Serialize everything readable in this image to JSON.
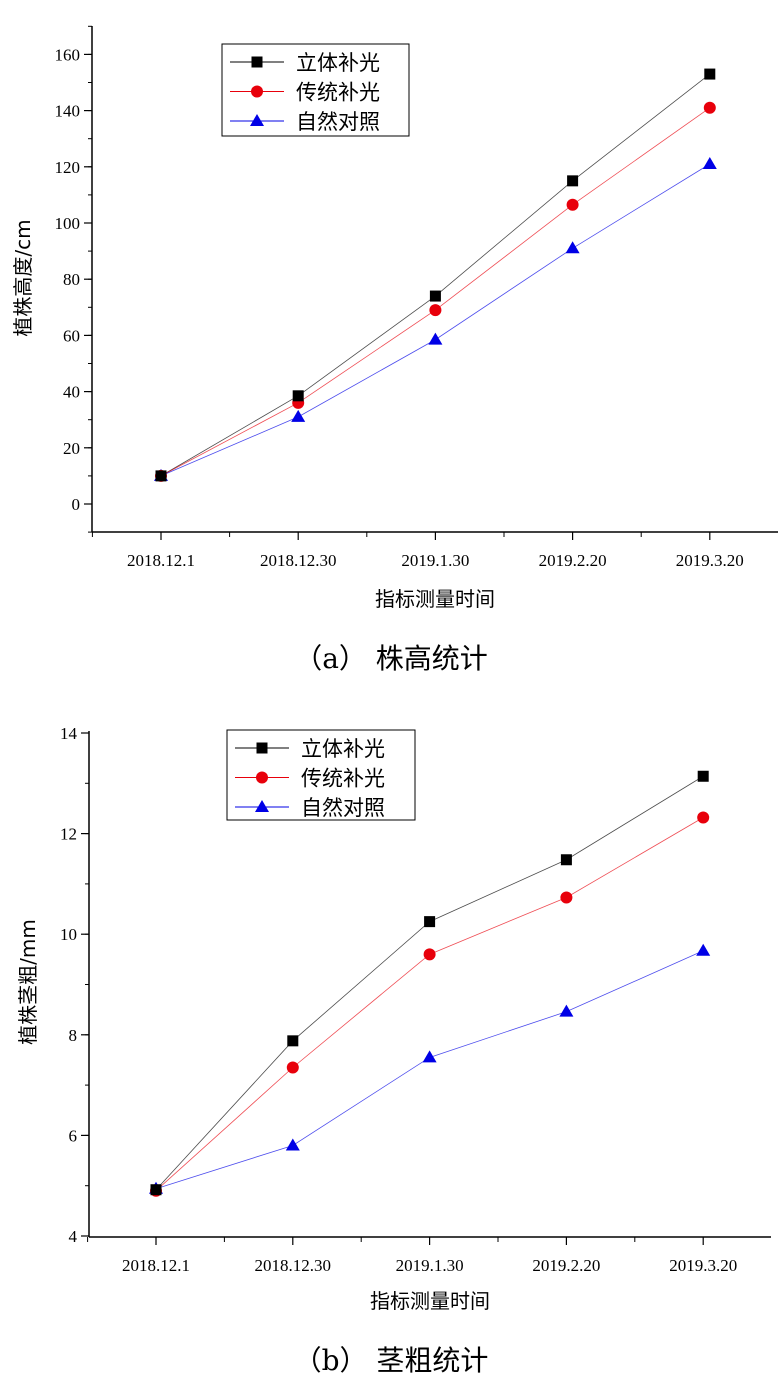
{
  "chart_data": [
    {
      "type": "line",
      "title": "",
      "caption": "（a） 株高统计",
      "xlabel": "指标测量时间",
      "ylabel": "植株高度/cm",
      "categories": [
        "2018.12.1",
        "2018.12.30",
        "2019.1.30",
        "2019.2.20",
        "2019.3.20"
      ],
      "ylim": [
        -10,
        170
      ],
      "yticks": [
        "0",
        "20",
        "40",
        "60",
        "80",
        "100",
        "120",
        "140",
        "160"
      ],
      "legend_position": "top-left",
      "series": [
        {
          "name": "立体补光",
          "marker": "square",
          "color": "#000000",
          "values": [
            10,
            38.5,
            74,
            115,
            153
          ]
        },
        {
          "name": "传统补光",
          "marker": "circle",
          "color": "#e8000b",
          "values": [
            10,
            36,
            69,
            106.5,
            141
          ]
        },
        {
          "name": "自然对照",
          "marker": "triangle",
          "color": "#0000e6",
          "values": [
            10,
            31,
            58.5,
            91,
            121
          ]
        }
      ]
    },
    {
      "type": "line",
      "title": "",
      "caption": "（b） 茎粗统计",
      "xlabel": "指标测量时间",
      "ylabel": "植株茎粗/mm",
      "categories": [
        "2018.12.1",
        "2018.12.30",
        "2019.1.30",
        "2019.2.20",
        "2019.3.20"
      ],
      "ylim": [
        4,
        14
      ],
      "yticks": [
        "4",
        "6",
        "8",
        "10",
        "12",
        "14"
      ],
      "legend_position": "top-left",
      "series": [
        {
          "name": "立体补光",
          "marker": "square",
          "color": "#000000",
          "values": [
            4.92,
            7.88,
            10.25,
            11.48,
            13.14
          ]
        },
        {
          "name": "传统补光",
          "marker": "circle",
          "color": "#e8000b",
          "values": [
            4.9,
            7.35,
            9.6,
            10.73,
            12.32
          ]
        },
        {
          "name": "自然对照",
          "marker": "triangle",
          "color": "#0000e6",
          "values": [
            4.94,
            5.8,
            7.55,
            8.46,
            9.67
          ]
        }
      ]
    }
  ]
}
